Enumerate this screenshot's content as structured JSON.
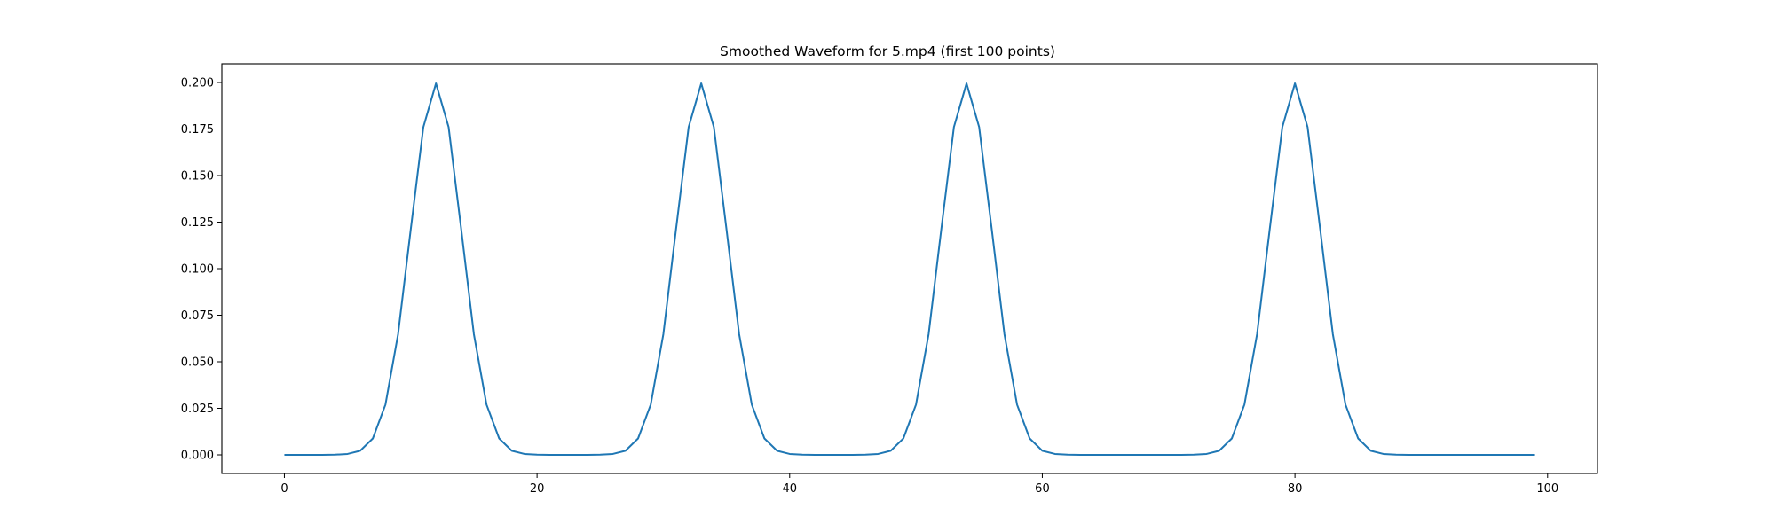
{
  "chart_data": {
    "type": "line",
    "title": "Smoothed Waveform for 5.mp4 (first 100 points)",
    "xlabel": "",
    "ylabel": "",
    "xlim": [
      -4.95,
      103.95
    ],
    "ylim": [
      -0.01,
      0.21
    ],
    "xticks": [
      0,
      20,
      40,
      60,
      80,
      100
    ],
    "xtick_labels": [
      "0",
      "20",
      "40",
      "60",
      "80",
      "100"
    ],
    "yticks": [
      0.0,
      0.025,
      0.05,
      0.075,
      0.1,
      0.125,
      0.15,
      0.175,
      0.2
    ],
    "ytick_labels": [
      "0.000",
      "0.025",
      "0.050",
      "0.075",
      "0.100",
      "0.125",
      "0.150",
      "0.175",
      "0.200"
    ],
    "grid": false,
    "series": [
      {
        "color": "#1f77b4",
        "x": [
          0,
          1,
          2,
          3,
          4,
          5,
          6,
          7,
          8,
          9,
          10,
          11,
          12,
          13,
          14,
          15,
          16,
          17,
          18,
          19,
          20,
          21,
          22,
          23,
          24,
          25,
          26,
          27,
          28,
          29,
          30,
          31,
          32,
          33,
          34,
          35,
          36,
          37,
          38,
          39,
          40,
          41,
          42,
          43,
          44,
          45,
          46,
          47,
          48,
          49,
          50,
          51,
          52,
          53,
          54,
          55,
          56,
          57,
          58,
          59,
          60,
          61,
          62,
          63,
          64,
          65,
          66,
          67,
          68,
          69,
          70,
          71,
          72,
          73,
          74,
          75,
          76,
          77,
          78,
          79,
          80,
          81,
          82,
          83,
          84,
          85,
          86,
          87,
          88,
          89,
          90,
          91,
          92,
          93,
          94,
          95,
          96,
          97,
          98,
          99
        ],
        "y": [
          0.0,
          0.0,
          0.0,
          0.0,
          0.0001,
          0.0005,
          0.0022,
          0.0088,
          0.027,
          0.0648,
          0.121,
          0.176,
          0.1995,
          0.176,
          0.121,
          0.0648,
          0.027,
          0.0088,
          0.0022,
          0.0005,
          0.0001,
          0.0,
          0.0,
          0.0,
          0.0,
          0.0001,
          0.0005,
          0.0022,
          0.0088,
          0.027,
          0.0648,
          0.121,
          0.176,
          0.1995,
          0.176,
          0.121,
          0.0648,
          0.027,
          0.0088,
          0.0022,
          0.0005,
          0.0001,
          0.0,
          0.0,
          0.0,
          0.0,
          0.0001,
          0.0005,
          0.0022,
          0.0088,
          0.027,
          0.0648,
          0.121,
          0.176,
          0.1995,
          0.176,
          0.121,
          0.0648,
          0.027,
          0.0088,
          0.0022,
          0.0005,
          0.0001,
          0.0,
          0.0,
          0.0,
          0.0,
          0.0,
          0.0,
          0.0,
          0.0,
          0.0,
          0.0001,
          0.0005,
          0.0022,
          0.0088,
          0.027,
          0.0648,
          0.121,
          0.176,
          0.1995,
          0.176,
          0.121,
          0.0648,
          0.027,
          0.0088,
          0.0022,
          0.0005,
          0.0001,
          0.0,
          0.0,
          0.0,
          0.0,
          0.0,
          0.0,
          0.0,
          0.0,
          0.0,
          0.0,
          0.0
        ]
      }
    ]
  }
}
